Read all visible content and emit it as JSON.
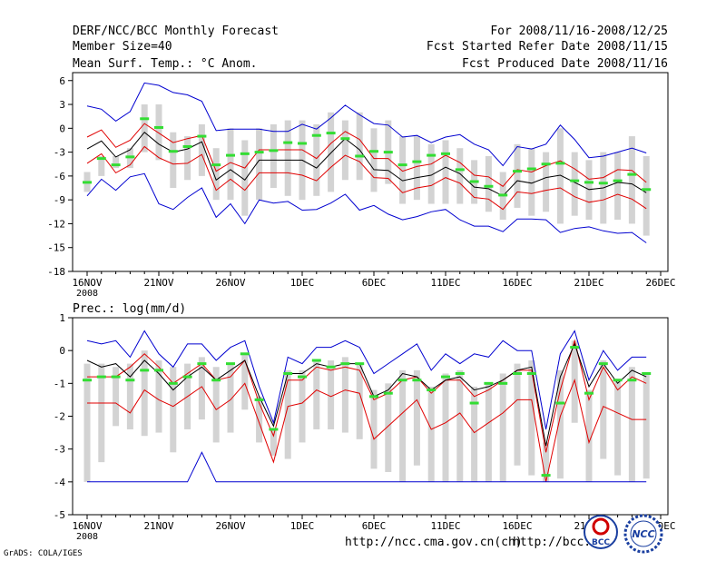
{
  "header": {
    "title": "DERF/NCC/BCC Monthly Forecast",
    "member_size": "Member Size=40",
    "variable": "Mean Surf. Temp.: °C Anom.",
    "period": "For 2008/11/16-2008/12/25",
    "fcst_started": "Fcst Started Refer Date 2008/11/15",
    "fcst_produced": "Fcst Produced Date 2008/11/16"
  },
  "footer": {
    "grads": "GrADS: COLA/IGES",
    "url1": "http://ncc.cma.gov.cn(ch)",
    "url2": "http://bcc.",
    "logo1": "BCC",
    "logo2": "NCC"
  },
  "colors": {
    "mean": "#000000",
    "spread": "#e00000",
    "extreme": "#0000d0",
    "obs": "#33dd33",
    "box": "#d3d3d3"
  },
  "chart_data": [
    {
      "type": "line",
      "title": "Mean Surf. Temp.: °C Anom.",
      "ylim": [
        -18,
        7
      ],
      "yticks": [
        6,
        3,
        0,
        -3,
        -6,
        -9,
        -12,
        -15,
        -18
      ],
      "xlim": [
        0,
        40
      ],
      "xticks": [
        {
          "day": 0,
          "label": "16NOV",
          "sub": "2008"
        },
        {
          "day": 5,
          "label": "21NOV"
        },
        {
          "day": 10,
          "label": "26NOV"
        },
        {
          "day": 15,
          "label": "1DEC"
        },
        {
          "day": 20,
          "label": "6DEC"
        },
        {
          "day": 25,
          "label": "11DEC"
        },
        {
          "day": 30,
          "label": "16DEC"
        },
        {
          "day": 35,
          "label": "21DEC"
        },
        {
          "day": 40,
          "label": "26DEC"
        }
      ],
      "series": [
        {
          "name": "max",
          "color_key": "extreme",
          "values": [
            2.8,
            2.4,
            0.9,
            2.1,
            5.7,
            5.4,
            4.5,
            4.2,
            3.4,
            -0.3,
            -0.1,
            -0.1,
            -0.1,
            -0.4,
            -0.4,
            0.5,
            -0.1,
            1.3,
            2.9,
            1.7,
            0.6,
            0.4,
            -1.1,
            -0.9,
            -1.8,
            -1.1,
            -0.8,
            -2.0,
            -2.7,
            -4.7,
            -2.3,
            -2.6,
            -2.0,
            0.4,
            -1.4,
            -3.7,
            -3.5,
            -3.0,
            -2.5,
            -3.1
          ]
        },
        {
          "name": "upper",
          "color_key": "spread",
          "values": [
            -1.1,
            -0.2,
            -2.4,
            -1.5,
            0.6,
            -0.6,
            -1.8,
            -1.3,
            -0.9,
            -5.4,
            -4.3,
            -5.0,
            -2.7,
            -2.7,
            -2.7,
            -2.7,
            -3.8,
            -1.9,
            -0.4,
            -1.4,
            -3.8,
            -3.8,
            -5.4,
            -4.8,
            -4.5,
            -3.4,
            -4.3,
            -5.9,
            -6.1,
            -7.3,
            -5.2,
            -5.5,
            -4.7,
            -4.1,
            -5.1,
            -6.4,
            -6.2,
            -5.2,
            -5.3,
            -6.8
          ]
        },
        {
          "name": "mean",
          "color_key": "mean",
          "values": [
            -2.6,
            -1.6,
            -3.6,
            -2.7,
            -0.5,
            -2.0,
            -3.0,
            -2.6,
            -1.7,
            -6.5,
            -5.2,
            -6.5,
            -4.0,
            -4.0,
            -4.0,
            -4.0,
            -5.0,
            -3.1,
            -1.3,
            -2.7,
            -5.2,
            -5.3,
            -6.6,
            -6.2,
            -5.9,
            -4.9,
            -5.7,
            -7.4,
            -7.6,
            -8.5,
            -6.6,
            -6.9,
            -6.2,
            -5.9,
            -6.8,
            -7.7,
            -7.5,
            -6.8,
            -7.0,
            -8.1
          ]
        },
        {
          "name": "lower",
          "color_key": "spread",
          "values": [
            -4.4,
            -3.2,
            -5.6,
            -4.6,
            -2.3,
            -3.7,
            -4.5,
            -4.4,
            -3.3,
            -7.8,
            -6.4,
            -7.8,
            -5.6,
            -5.6,
            -5.6,
            -5.9,
            -6.6,
            -4.9,
            -3.4,
            -4.2,
            -6.2,
            -6.3,
            -8.1,
            -7.5,
            -7.2,
            -6.2,
            -6.9,
            -8.7,
            -8.9,
            -10.2,
            -8.0,
            -8.2,
            -7.8,
            -7.5,
            -8.6,
            -9.3,
            -9.0,
            -8.3,
            -8.9,
            -10.1
          ]
        },
        {
          "name": "min",
          "color_key": "extreme",
          "values": [
            -8.5,
            -6.4,
            -7.8,
            -6.1,
            -5.7,
            -9.5,
            -10.2,
            -8.7,
            -7.5,
            -11.2,
            -9.5,
            -12.0,
            -9.0,
            -9.4,
            -9.2,
            -10.3,
            -10.2,
            -9.4,
            -8.3,
            -10.3,
            -9.7,
            -10.8,
            -11.5,
            -11.1,
            -10.5,
            -10.2,
            -11.5,
            -12.3,
            -12.3,
            -13.0,
            -11.4,
            -11.4,
            -11.5,
            -13.1,
            -12.6,
            -12.4,
            -12.9,
            -13.2,
            -13.1,
            -14.4
          ]
        }
      ],
      "boxes": {
        "hi": [
          -5.5,
          -3.5,
          -3.5,
          -2.5,
          3.0,
          3.0,
          -0.5,
          -1.0,
          0.5,
          -2.5,
          0.0,
          -1.5,
          0.0,
          0.5,
          1.0,
          1.0,
          0.5,
          2.0,
          1.0,
          2.0,
          0.0,
          1.0,
          -1.0,
          -1.0,
          -2.0,
          -1.5,
          -2.5,
          -4.0,
          -3.5,
          -5.5,
          -2.0,
          -2.5,
          -3.0,
          0.0,
          -3.0,
          -4.0,
          -3.0,
          -3.0,
          -1.0,
          -3.5
        ],
        "lo": [
          -8.0,
          -6.0,
          -5.0,
          -5.0,
          -3.0,
          -4.0,
          -7.5,
          -6.5,
          -6.0,
          -9.0,
          -9.0,
          -11.0,
          -9.0,
          -7.5,
          -8.5,
          -9.0,
          -8.5,
          -8.0,
          -6.5,
          -6.5,
          -8.0,
          -7.0,
          -9.5,
          -9.0,
          -9.5,
          -9.5,
          -9.5,
          -9.5,
          -10.5,
          -11.5,
          -10.0,
          -11.0,
          -10.5,
          -12.0,
          -11.0,
          -11.5,
          -12.0,
          -11.5,
          -12.0,
          -13.5
        ]
      },
      "observed": [
        -6.8,
        -3.8,
        -4.6,
        -3.6,
        1.2,
        0.1,
        -2.9,
        -2.3,
        -1.0,
        -4.6,
        -3.4,
        -3.2,
        -3.0,
        -2.8,
        -1.8,
        -1.9,
        -0.9,
        -0.6,
        -1.3,
        -3.5,
        -2.9,
        -3.0,
        -4.6,
        -4.2,
        -3.4,
        -3.2,
        -5.2,
        -6.7,
        -7.3,
        -8.4,
        -5.4,
        -5.1,
        -4.5,
        -4.4,
        -6.6,
        -6.8,
        -6.9,
        -6.6,
        -5.8,
        -7.7
      ]
    },
    {
      "type": "line",
      "title": "Prec.: log(mm/d)",
      "ylim": [
        -5,
        1
      ],
      "yticks": [
        1,
        0,
        -1,
        -2,
        -3,
        -4,
        -5
      ],
      "xlim": [
        0,
        40
      ],
      "xticks": [
        {
          "day": 0,
          "label": "16NOV",
          "sub": "2008"
        },
        {
          "day": 5,
          "label": "21NOV"
        },
        {
          "day": 10,
          "label": "26NOV"
        },
        {
          "day": 15,
          "label": "1DEC"
        },
        {
          "day": 20,
          "label": "6DEC"
        },
        {
          "day": 25,
          "label": "11DEC"
        },
        {
          "day": 30,
          "label": "16DEC"
        },
        {
          "day": 35,
          "label": "21DEC"
        },
        {
          "day": 40,
          "label": "26DEC"
        }
      ],
      "series": [
        {
          "name": "max",
          "color_key": "extreme",
          "values": [
            0.3,
            0.2,
            0.3,
            -0.2,
            0.6,
            -0.1,
            -0.5,
            0.2,
            0.2,
            -0.3,
            0.1,
            0.3,
            -1.1,
            -2.2,
            -0.2,
            -0.4,
            0.1,
            0.1,
            0.3,
            0.1,
            -0.7,
            -0.4,
            -0.1,
            0.2,
            -0.6,
            -0.1,
            -0.4,
            -0.1,
            -0.2,
            0.3,
            0.0,
            0.0,
            -2.4,
            -0.1,
            0.6,
            -0.9,
            0.0,
            -0.6,
            -0.2,
            -0.2
          ]
        },
        {
          "name": "upper",
          "color_key": "spread",
          "values": [
            -0.8,
            -0.8,
            -0.8,
            -0.5,
            -0.1,
            -0.5,
            -1.0,
            -0.7,
            -0.4,
            -0.9,
            -0.8,
            -0.3,
            -1.6,
            -2.6,
            -0.9,
            -0.9,
            -0.5,
            -0.6,
            -0.5,
            -0.6,
            -1.5,
            -1.3,
            -0.9,
            -0.8,
            -1.3,
            -0.9,
            -0.9,
            -1.4,
            -1.2,
            -0.9,
            -0.6,
            -0.6,
            -3.1,
            -1.2,
            0.3,
            -1.5,
            -0.5,
            -1.2,
            -0.8,
            -1.0
          ]
        },
        {
          "name": "mean",
          "color_key": "mean",
          "values": [
            -0.3,
            -0.5,
            -0.4,
            -0.8,
            -0.3,
            -0.7,
            -1.2,
            -0.8,
            -0.5,
            -0.9,
            -0.6,
            -0.3,
            -1.4,
            -2.3,
            -0.7,
            -0.7,
            -0.4,
            -0.5,
            -0.4,
            -0.4,
            -1.4,
            -1.2,
            -0.7,
            -0.8,
            -1.2,
            -0.9,
            -0.8,
            -1.2,
            -1.1,
            -0.9,
            -0.6,
            -0.5,
            -2.9,
            -0.8,
            0.2,
            -1.1,
            -0.4,
            -1.0,
            -0.6,
            -0.8
          ]
        },
        {
          "name": "lower",
          "color_key": "spread",
          "values": [
            -1.6,
            -1.6,
            -1.6,
            -1.9,
            -1.2,
            -1.5,
            -1.7,
            -1.4,
            -1.1,
            -1.8,
            -1.5,
            -1.0,
            -2.2,
            -3.4,
            -1.7,
            -1.6,
            -1.2,
            -1.4,
            -1.2,
            -1.3,
            -2.7,
            -2.3,
            -1.9,
            -1.5,
            -2.4,
            -2.2,
            -1.9,
            -2.5,
            -2.2,
            -1.9,
            -1.5,
            -1.5,
            -4.0,
            -2.0,
            -0.9,
            -2.8,
            -1.7,
            -1.9,
            -2.1,
            -2.1
          ]
        },
        {
          "name": "min",
          "color_key": "extreme",
          "values": [
            -4.0,
            -4.0,
            -4.0,
            -4.0,
            -4.0,
            -4.0,
            -4.0,
            -4.0,
            -3.1,
            -4.0,
            -4.0,
            -4.0,
            -4.0,
            -4.0,
            -4.0,
            -4.0,
            -4.0,
            -4.0,
            -4.0,
            -4.0,
            -4.0,
            -4.0,
            -4.0,
            -4.0,
            -4.0,
            -4.0,
            -4.0,
            -4.0,
            -4.0,
            -4.0,
            -4.0,
            -4.0,
            -4.0,
            -4.0,
            -4.0,
            -4.0,
            -4.0,
            -4.0,
            -4.0,
            -4.0
          ]
        }
      ],
      "boxes": {
        "hi": [
          -0.4,
          -0.4,
          -0.5,
          -0.4,
          0.0,
          -0.3,
          -0.5,
          -0.4,
          -0.2,
          -0.5,
          -0.4,
          -0.1,
          -1.4,
          -2.4,
          -0.6,
          -0.6,
          -0.3,
          -0.3,
          -0.2,
          -0.4,
          -1.2,
          -1.0,
          -0.6,
          -0.6,
          -1.1,
          -0.7,
          -0.6,
          -1.1,
          -1.0,
          -0.7,
          -0.4,
          -0.3,
          -2.8,
          -0.6,
          0.3,
          -1.2,
          -0.3,
          -0.9,
          -0.5,
          -0.7
        ],
        "lo": [
          -4.0,
          -3.4,
          -2.3,
          -2.4,
          -2.6,
          -2.5,
          -3.1,
          -2.4,
          -2.1,
          -2.8,
          -2.5,
          -1.8,
          -2.8,
          -3.2,
          -3.3,
          -2.8,
          -2.4,
          -2.4,
          -2.5,
          -2.7,
          -3.6,
          -3.7,
          -4.0,
          -3.5,
          -4.0,
          -4.0,
          -4.0,
          -4.0,
          -4.0,
          -4.0,
          -3.5,
          -3.8,
          -4.0,
          -3.9,
          -2.2,
          -4.0,
          -3.3,
          -3.8,
          -4.0,
          -3.9
        ]
      },
      "observed": [
        -0.9,
        -0.8,
        -0.8,
        -0.9,
        -0.6,
        -0.6,
        -1.0,
        -0.8,
        -0.4,
        -0.9,
        -0.4,
        -0.1,
        -1.5,
        -2.4,
        -0.7,
        -0.8,
        -0.3,
        -0.5,
        -0.4,
        -0.4,
        -1.4,
        -1.3,
        -0.9,
        -0.9,
        -1.2,
        -0.8,
        -0.7,
        -1.6,
        -1.0,
        -1.0,
        -0.7,
        -0.7,
        -3.8,
        -1.6,
        0.1,
        -1.3,
        -0.4,
        -0.9,
        -0.9,
        -0.7
      ]
    }
  ]
}
